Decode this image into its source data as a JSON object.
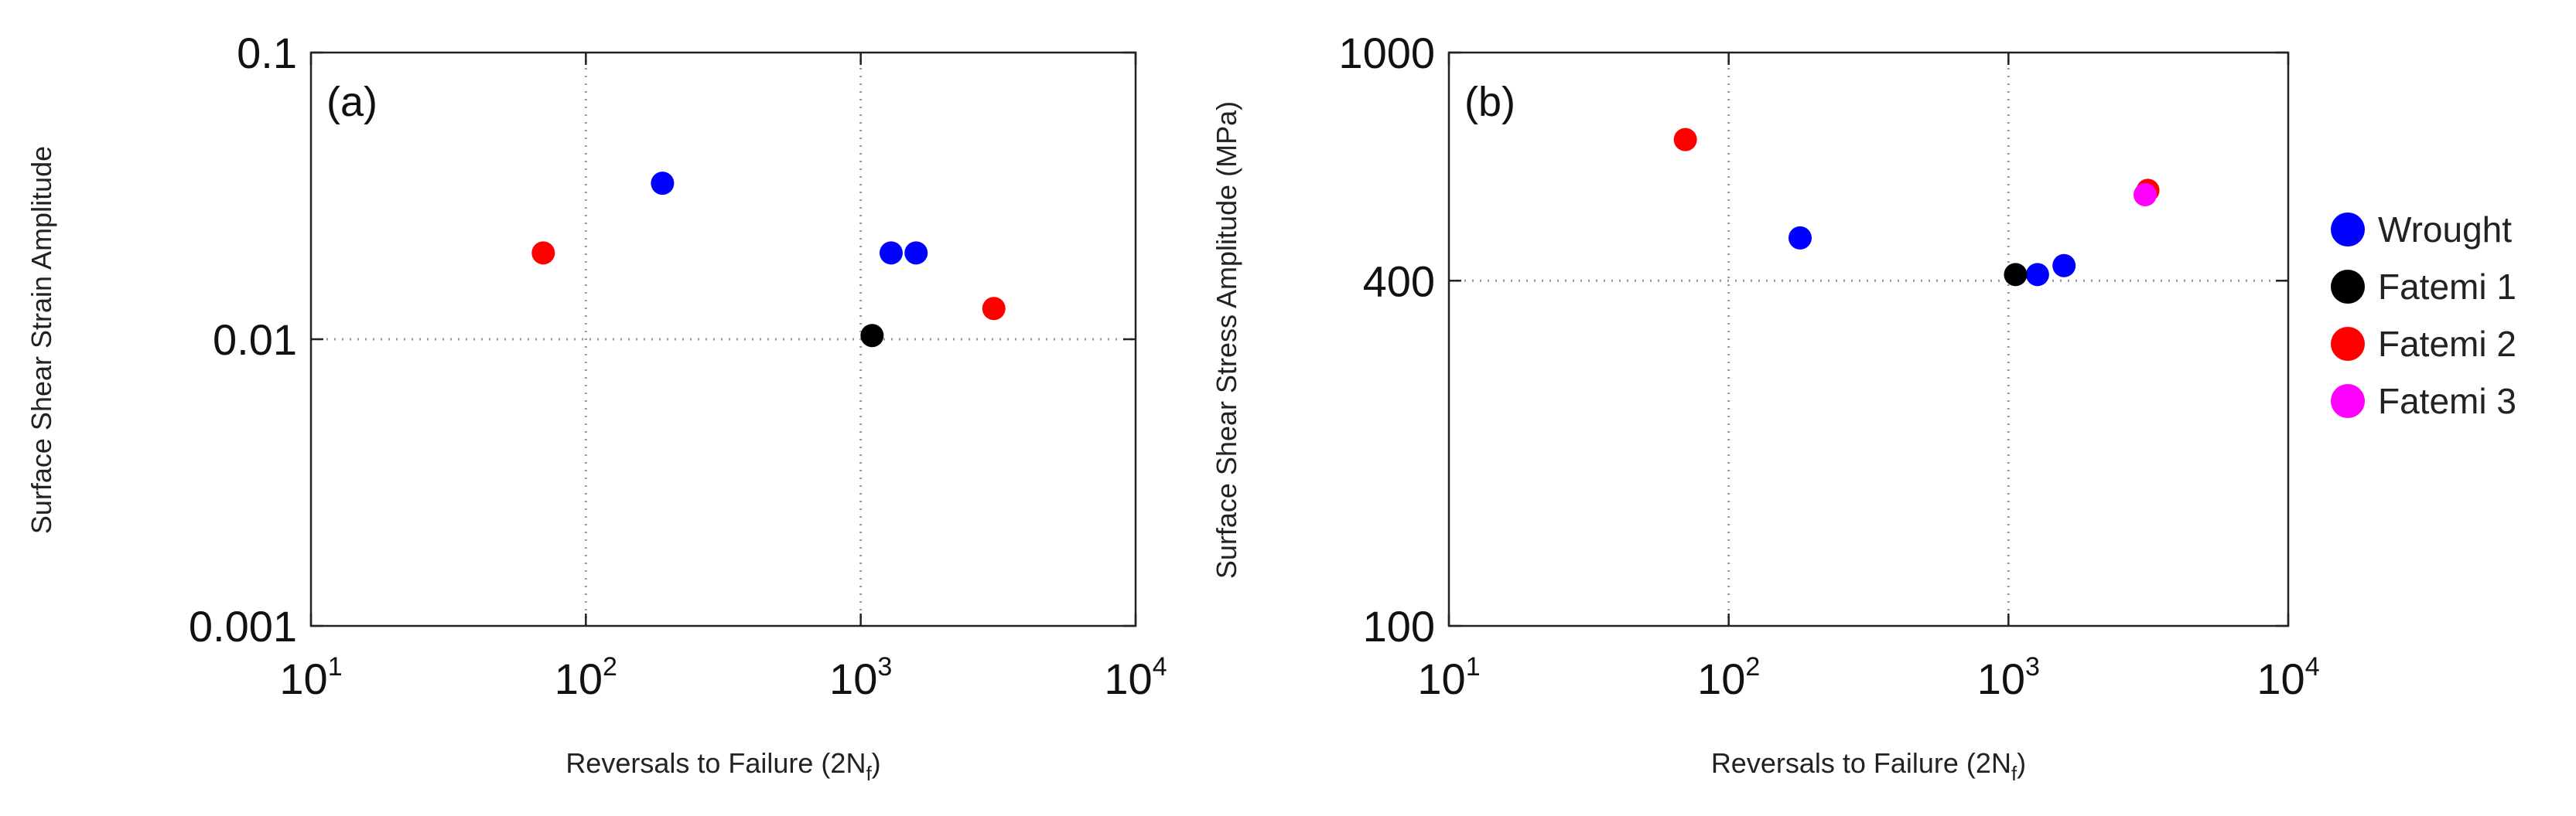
{
  "chart_data": [
    {
      "type": "scatter",
      "panel_label": "(a)",
      "xlabel": "Reversals to Failure (2N",
      "xlabel_sub": "f",
      "xlabel_end": ")",
      "ylabel": "Surface Shear Strain Amplitude",
      "x_scale": "log",
      "y_scale": "log",
      "xlim": [
        10,
        10000
      ],
      "ylim": [
        0.001,
        0.1
      ],
      "x_ticks": [
        {
          "value": 10,
          "base": "10",
          "exp": "1"
        },
        {
          "value": 100,
          "base": "10",
          "exp": "2"
        },
        {
          "value": 1000,
          "base": "10",
          "exp": "3"
        },
        {
          "value": 10000,
          "base": "10",
          "exp": "4"
        }
      ],
      "y_ticks": [
        {
          "value": 0.1,
          "label": "0.1"
        },
        {
          "value": 0.01,
          "label": "0.01"
        },
        {
          "value": 0.001,
          "label": "0.001"
        }
      ],
      "grid": "dotted",
      "series": [
        {
          "name": "Wrought",
          "color": "#0000ff",
          "points": [
            {
              "x": 190,
              "y": 0.035
            },
            {
              "x": 1290,
              "y": 0.02
            },
            {
              "x": 1590,
              "y": 0.02
            }
          ]
        },
        {
          "name": "Fatemi 1",
          "color": "#000000",
          "points": [
            {
              "x": 1100,
              "y": 0.0103
            }
          ]
        },
        {
          "name": "Fatemi 2",
          "color": "#ff0000",
          "points": [
            {
              "x": 70,
              "y": 0.02
            },
            {
              "x": 3050,
              "y": 0.0128
            }
          ]
        }
      ]
    },
    {
      "type": "scatter",
      "panel_label": "(b)",
      "xlabel": "Reversals to Failure (2N",
      "xlabel_sub": "f",
      "xlabel_end": ")",
      "ylabel": "Surface Shear Stress Amplitude (MPa)",
      "x_scale": "log",
      "y_scale": "log",
      "xlim": [
        10,
        10000
      ],
      "ylim": [
        100,
        1000
      ],
      "x_ticks": [
        {
          "value": 10,
          "base": "10",
          "exp": "1"
        },
        {
          "value": 100,
          "base": "10",
          "exp": "2"
        },
        {
          "value": 1000,
          "base": "10",
          "exp": "3"
        },
        {
          "value": 10000,
          "base": "10",
          "exp": "4"
        }
      ],
      "y_ticks": [
        {
          "value": 1000,
          "label": "1000"
        },
        {
          "value": 400,
          "label": "400"
        },
        {
          "value": 100,
          "label": "100"
        }
      ],
      "grid": "dotted",
      "series": [
        {
          "name": "Wrought",
          "color": "#0000ff",
          "points": [
            {
              "x": 180,
              "y": 475
            },
            {
              "x": 1270,
              "y": 410
            },
            {
              "x": 1580,
              "y": 425
            }
          ]
        },
        {
          "name": "Fatemi 1",
          "color": "#000000",
          "points": [
            {
              "x": 1060,
              "y": 410
            }
          ]
        },
        {
          "name": "Fatemi 2",
          "color": "#ff0000",
          "points": [
            {
              "x": 70,
              "y": 705
            },
            {
              "x": 3150,
              "y": 575
            }
          ]
        },
        {
          "name": "Fatemi 3",
          "color": "#ff00ff",
          "points": [
            {
              "x": 3080,
              "y": 565
            }
          ]
        }
      ]
    }
  ],
  "legend": {
    "placement": "right",
    "items": [
      {
        "label": "Wrought",
        "color": "#0000ff"
      },
      {
        "label": "Fatemi 1",
        "color": "#000000"
      },
      {
        "label": "Fatemi 2",
        "color": "#ff0000"
      },
      {
        "label": "Fatemi 3",
        "color": "#ff00ff"
      }
    ]
  }
}
